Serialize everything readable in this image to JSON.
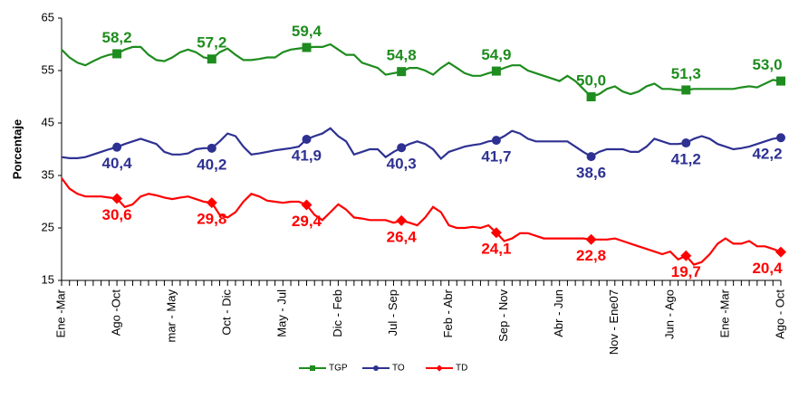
{
  "chart_data": {
    "type": "line",
    "y_label": "Porcentaje",
    "ylim": [
      15,
      65
    ],
    "yticks": [
      15,
      25,
      35,
      45,
      55,
      65
    ],
    "grid": false,
    "legend_position": "bottom",
    "categories": [
      "Ene -Mar",
      null,
      null,
      null,
      null,
      null,
      null,
      "Ago -Oct",
      null,
      null,
      null,
      null,
      null,
      null,
      "mar - May",
      null,
      null,
      null,
      null,
      null,
      null,
      "Oct - Dic",
      null,
      null,
      null,
      null,
      null,
      null,
      "May - Jul",
      null,
      null,
      null,
      null,
      null,
      null,
      "Dic - Feb",
      null,
      null,
      null,
      null,
      null,
      null,
      "Jul - Sep",
      null,
      null,
      null,
      null,
      null,
      null,
      "Feb - Abr",
      null,
      null,
      null,
      null,
      null,
      null,
      "Sep - Nov",
      null,
      null,
      null,
      null,
      null,
      null,
      "Abr - Jun",
      null,
      null,
      null,
      null,
      null,
      null,
      "Nov - Ene07",
      null,
      null,
      null,
      null,
      null,
      null,
      "Jun - Ago",
      null,
      null,
      null,
      null,
      null,
      null,
      "Ene -Mar",
      null,
      null,
      null,
      null,
      null,
      null,
      "Ago - Oct"
    ],
    "series": [
      {
        "name": "TGP",
        "color": "#1e8c1e",
        "marker": "square",
        "label_side": "above",
        "values": [
          59,
          57.5,
          56.5,
          56,
          56.8,
          57.5,
          58,
          58.2,
          59,
          59.5,
          59.5,
          58,
          57,
          56.8,
          57.5,
          58.5,
          59,
          58.5,
          57.5,
          57.2,
          58.5,
          59.2,
          58,
          57,
          57,
          57.2,
          57.5,
          57.5,
          58.5,
          59,
          59.2,
          59.4,
          59.5,
          59.5,
          60,
          59,
          58,
          58,
          56.5,
          56,
          55.5,
          54.2,
          54.5,
          54.8,
          55.5,
          55.5,
          55,
          54.2,
          55.5,
          56.5,
          55.5,
          54.5,
          54,
          54,
          54.5,
          54.9,
          55.5,
          56,
          56,
          55,
          54.5,
          54,
          53.5,
          53,
          54,
          53,
          51.5,
          50,
          50.5,
          51.5,
          52,
          51,
          50.5,
          51,
          52,
          52.5,
          51.5,
          51.5,
          51.3,
          51.3,
          51.5,
          51.5,
          51.5,
          51.5,
          51.5,
          51.5,
          51.8,
          52,
          51.8,
          52.5,
          53.2,
          53
        ],
        "value_labels": [
          null,
          null,
          null,
          null,
          null,
          null,
          null,
          "58,2",
          null,
          null,
          null,
          null,
          null,
          null,
          null,
          null,
          null,
          null,
          null,
          "57,2",
          null,
          null,
          null,
          null,
          null,
          null,
          null,
          null,
          null,
          null,
          null,
          "59,4",
          null,
          null,
          null,
          null,
          null,
          null,
          null,
          null,
          null,
          null,
          null,
          "54,8",
          null,
          null,
          null,
          null,
          null,
          null,
          null,
          null,
          null,
          null,
          null,
          "54,9",
          null,
          null,
          null,
          null,
          null,
          null,
          null,
          null,
          null,
          null,
          null,
          "50,0",
          null,
          null,
          null,
          null,
          null,
          null,
          null,
          null,
          null,
          null,
          null,
          "51,3",
          null,
          null,
          null,
          null,
          null,
          null,
          null,
          null,
          null,
          null,
          null,
          "53,0"
        ]
      },
      {
        "name": "TO",
        "color": "#2e3192",
        "marker": "circle",
        "label_side": "below",
        "values": [
          38.5,
          38.3,
          38.3,
          38.5,
          39,
          39.5,
          40,
          40.4,
          41,
          41.5,
          42,
          41.5,
          41,
          39.5,
          39,
          39,
          39.2,
          40,
          40.2,
          40.2,
          41.5,
          43,
          42.5,
          40.5,
          39,
          39.2,
          39.5,
          39.8,
          40,
          40.2,
          40.5,
          41.9,
          42.5,
          43,
          44,
          42.5,
          41.5,
          39,
          39.5,
          40,
          40,
          38.5,
          39.5,
          40.3,
          41,
          41.5,
          41,
          40,
          38.2,
          39.5,
          40,
          40.5,
          40.8,
          41,
          41.5,
          41.7,
          42.5,
          43.5,
          43,
          42,
          41.5,
          41.5,
          41.5,
          41.5,
          41.5,
          40.5,
          39.5,
          38.6,
          39.5,
          40,
          40,
          40,
          39.5,
          39.5,
          40.5,
          42,
          41.5,
          41,
          41,
          41.2,
          42,
          42.5,
          42,
          41,
          40.5,
          40,
          40.2,
          40.5,
          41,
          41.5,
          42,
          42.2
        ],
        "value_labels": [
          null,
          null,
          null,
          null,
          null,
          null,
          null,
          "40,4",
          null,
          null,
          null,
          null,
          null,
          null,
          null,
          null,
          null,
          null,
          null,
          "40,2",
          null,
          null,
          null,
          null,
          null,
          null,
          null,
          null,
          null,
          null,
          null,
          "41,9",
          null,
          null,
          null,
          null,
          null,
          null,
          null,
          null,
          null,
          null,
          null,
          "40,3",
          null,
          null,
          null,
          null,
          null,
          null,
          null,
          null,
          null,
          null,
          null,
          "41,7",
          null,
          null,
          null,
          null,
          null,
          null,
          null,
          null,
          null,
          null,
          null,
          "38,6",
          null,
          null,
          null,
          null,
          null,
          null,
          null,
          null,
          null,
          null,
          null,
          "41,2",
          null,
          null,
          null,
          null,
          null,
          null,
          null,
          null,
          null,
          null,
          null,
          "42,2"
        ]
      },
      {
        "name": "TD",
        "color": "#ff0000",
        "marker": "diamond",
        "label_side": "below",
        "values": [
          34.5,
          32.5,
          31.5,
          31,
          31,
          31,
          30.8,
          30.6,
          29,
          29.5,
          31,
          31.5,
          31.2,
          30.8,
          30.5,
          30.8,
          31,
          30.5,
          30,
          29.8,
          27.5,
          27,
          28,
          30,
          31.5,
          31,
          30.2,
          30,
          29.8,
          30,
          30,
          29.4,
          27.5,
          26.5,
          28,
          29.5,
          28.5,
          27,
          26.8,
          26.5,
          26.5,
          26.5,
          26,
          26.4,
          26,
          25.5,
          27,
          29,
          28,
          25.5,
          25,
          25,
          25.2,
          25,
          25.5,
          24.1,
          22.5,
          23,
          24,
          24,
          23.5,
          23,
          23,
          23,
          23,
          23,
          23,
          22.8,
          22.8,
          22.8,
          23,
          22.5,
          22,
          21.5,
          21,
          20.5,
          20,
          20.5,
          19,
          19.7,
          18,
          18.5,
          20,
          22,
          23,
          22,
          22,
          22.5,
          21.5,
          21.5,
          21,
          20.4
        ],
        "value_labels": [
          null,
          null,
          null,
          null,
          null,
          null,
          null,
          "30,6",
          null,
          null,
          null,
          null,
          null,
          null,
          null,
          null,
          null,
          null,
          null,
          "29,8",
          null,
          null,
          null,
          null,
          null,
          null,
          null,
          null,
          null,
          null,
          null,
          "29,4",
          null,
          null,
          null,
          null,
          null,
          null,
          null,
          null,
          null,
          null,
          null,
          "26,4",
          null,
          null,
          null,
          null,
          null,
          null,
          null,
          null,
          null,
          null,
          null,
          "24,1",
          null,
          null,
          null,
          null,
          null,
          null,
          null,
          null,
          null,
          null,
          null,
          "22,8",
          null,
          null,
          null,
          null,
          null,
          null,
          null,
          null,
          null,
          null,
          null,
          "19,7",
          null,
          null,
          null,
          null,
          null,
          null,
          null,
          null,
          null,
          null,
          null,
          "20,4"
        ]
      }
    ]
  }
}
